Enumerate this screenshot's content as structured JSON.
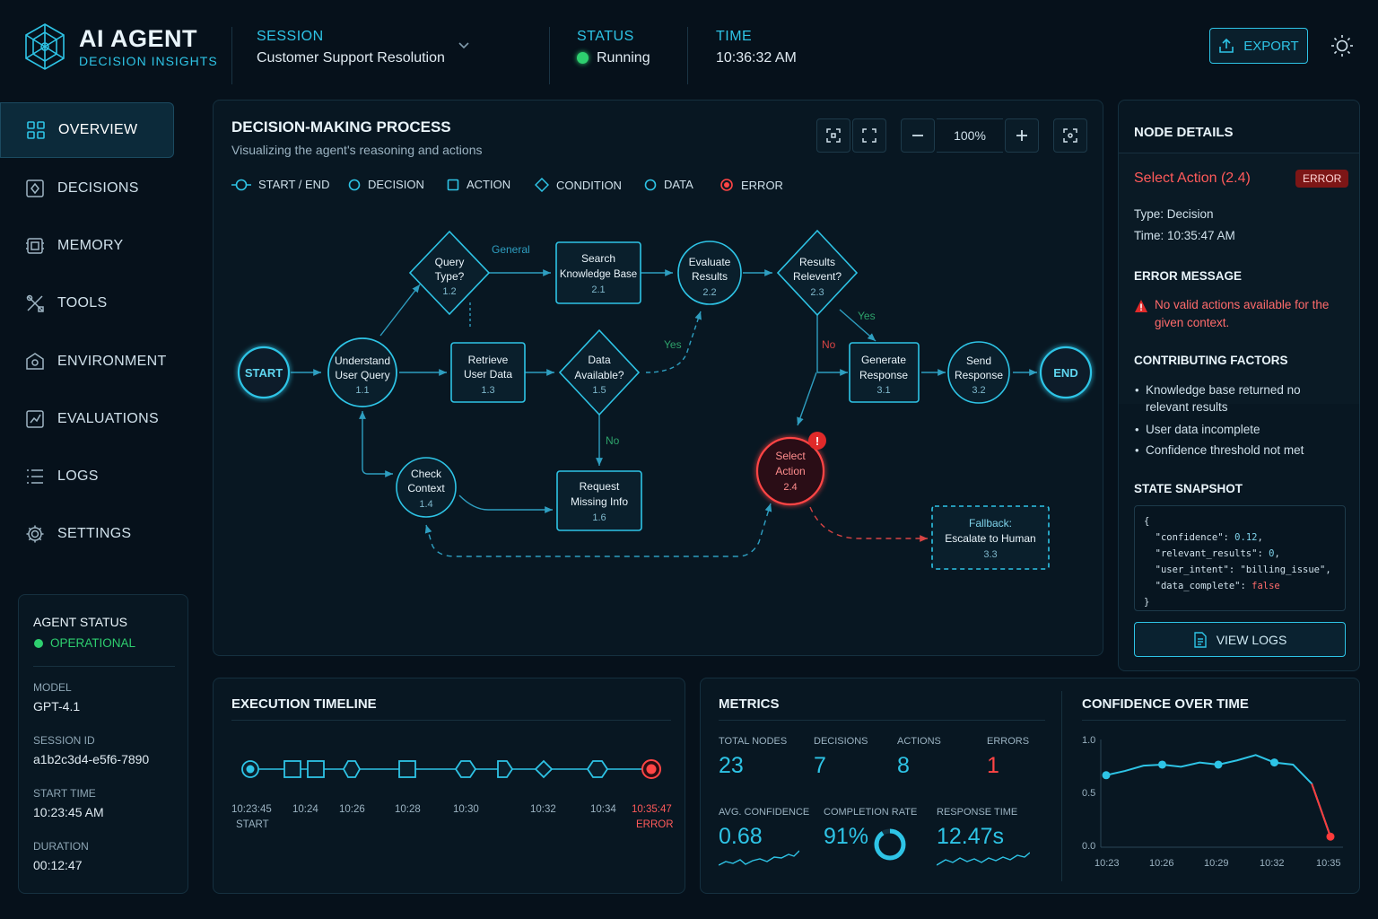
{
  "header": {
    "app_title": "AI AGENT",
    "app_subtitle": "DECISION INSIGHTS",
    "session_label": "SESSION",
    "session_value": "Customer Support Resolution",
    "status_label": "STATUS",
    "status_value": "Running",
    "time_label": "TIME",
    "time_value": "10:36:32 AM",
    "export_label": "EXPORT"
  },
  "sidebar": {
    "items": [
      {
        "label": "OVERVIEW",
        "icon": "grid-icon",
        "active": true
      },
      {
        "label": "DECISIONS",
        "icon": "decision-icon"
      },
      {
        "label": "MEMORY",
        "icon": "memory-icon"
      },
      {
        "label": "TOOLS",
        "icon": "tools-icon"
      },
      {
        "label": "ENVIRONMENT",
        "icon": "environment-icon"
      },
      {
        "label": "EVALUATIONS",
        "icon": "evaluations-icon"
      },
      {
        "label": "LOGS",
        "icon": "logs-icon"
      },
      {
        "label": "SETTINGS",
        "icon": "gear-icon"
      }
    ]
  },
  "agent_status": {
    "title": "AGENT STATUS",
    "state": "OPERATIONAL",
    "model_label": "MODEL",
    "model_value": "GPT-4.1",
    "session_id_label": "SESSION ID",
    "session_id_value": "a1b2c3d4-e5f6-7890",
    "start_time_label": "START TIME",
    "start_time_value": "10:23:45 AM",
    "duration_label": "DURATION",
    "duration_value": "00:12:47"
  },
  "process": {
    "title": "DECISION-MAKING PROCESS",
    "subtitle": "Visualizing the agent's reasoning and actions",
    "zoom": "100%",
    "legend": {
      "start_end": "START / END",
      "decision": "DECISION",
      "action": "ACTION",
      "condition": "CONDITION",
      "data": "DATA",
      "error": "ERROR"
    },
    "nodes": {
      "start": "START",
      "end": "END",
      "understand": [
        "Understand",
        "User Query",
        "1.1"
      ],
      "query_type": [
        "Query",
        "Type?",
        "1.2"
      ],
      "retrieve": [
        "Retrieve",
        "User Data",
        "1.3"
      ],
      "check_context": [
        "Check",
        "Context",
        "1.4"
      ],
      "data_available": [
        "Data",
        "Available?",
        "1.5"
      ],
      "request_missing": [
        "Request",
        "Missing Info",
        "1.6"
      ],
      "search_kb": [
        "Search",
        "Knowledge Base",
        "2.1"
      ],
      "evaluate": [
        "Evaluate",
        "Results",
        "2.2"
      ],
      "results_relevant": [
        "Results",
        "Relevent?",
        "2.3"
      ],
      "select_action": [
        "Select",
        "Action",
        "2.4"
      ],
      "generate": [
        "Generate",
        "Response",
        "3.1"
      ],
      "send": [
        "Send",
        "Response",
        "3.2"
      ],
      "fallback": [
        "Fallback:",
        "Escalate to Human",
        "3.3"
      ]
    },
    "edge_labels": {
      "general": "General",
      "yes_data": "Yes",
      "no_data": "No",
      "yes_relevant": "Yes",
      "no_relevant": "No"
    }
  },
  "node_details": {
    "title": "NODE DETAILS",
    "node_name": "Select Action (2.4)",
    "badge": "ERROR",
    "type": "Type: Decision",
    "time": "Time: 10:35:47 AM",
    "error_heading": "ERROR MESSAGE",
    "error_message": "No valid actions available for the given context.",
    "factors_heading": "CONTRIBUTING FACTORS",
    "factors": [
      "Knowledge base returned no relevant results",
      "User data incomplete",
      "Confidence threshold not met"
    ],
    "snapshot_heading": "STATE SNAPSHOT",
    "snapshot": {
      "confidence": "0.12",
      "relevant_results": "0",
      "user_intent": "\"billing_issue\"",
      "data_complete": "false"
    },
    "view_logs_label": "VIEW LOGS"
  },
  "timeline": {
    "title": "EXECUTION TIMELINE",
    "labels": [
      "10:23:45",
      "10:24",
      "10:26",
      "10:28",
      "10:30",
      "10:32",
      "10:34",
      "10:35:47"
    ],
    "start_caption": "START",
    "error_caption": "ERROR"
  },
  "metrics": {
    "title": "METRICS",
    "total_nodes_label": "TOTAL NODES",
    "total_nodes": "23",
    "decisions_label": "DECISIONS",
    "decisions": "7",
    "actions_label": "ACTIONS",
    "actions": "8",
    "errors_label": "ERRORS",
    "errors": "1",
    "avg_conf_label": "AVG. CONFIDENCE",
    "avg_conf": "0.68",
    "completion_label": "COMPLETION RATE",
    "completion": "91%",
    "completion_fraction": 0.91,
    "response_label": "RESPONSE TIME",
    "response": "12.47s"
  },
  "confidence_chart": {
    "title": "CONFIDENCE OVER TIME"
  },
  "chart_data": {
    "type": "line",
    "title": "CONFIDENCE OVER TIME",
    "xlabel": "",
    "ylabel": "",
    "x_ticks": [
      "10:23",
      "10:26",
      "10:29",
      "10:32",
      "10:35"
    ],
    "y_ticks": [
      "0.0",
      "0.5",
      "1.0"
    ],
    "ylim": [
      0,
      1
    ],
    "grid": false,
    "series": [
      {
        "x": [
          "10:23",
          "10:24",
          "10:25",
          "10:26",
          "10:27",
          "10:28",
          "10:29",
          "10:30",
          "10:31",
          "10:32",
          "10:33",
          "10:34",
          "10:35"
        ],
        "values": [
          0.68,
          0.72,
          0.77,
          0.78,
          0.76,
          0.8,
          0.78,
          0.82,
          0.87,
          0.8,
          0.78,
          0.6,
          0.1
        ],
        "highlight_points": [
          "10:23",
          "10:26",
          "10:29",
          "10:32",
          "10:35"
        ]
      }
    ],
    "colors": {
      "line": "#2ec4e6",
      "error_point": "#ff3b3b"
    }
  }
}
